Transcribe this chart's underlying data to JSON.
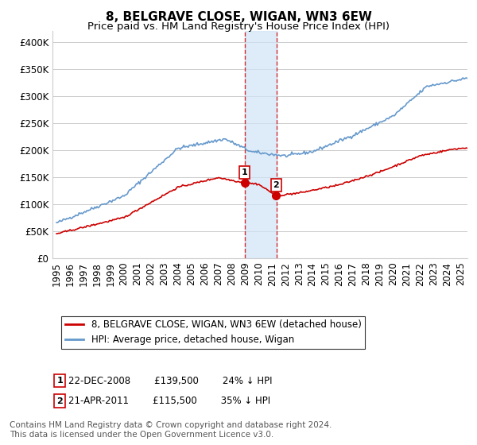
{
  "title": "8, BELGRAVE CLOSE, WIGAN, WN3 6EW",
  "subtitle": "Price paid vs. HM Land Registry's House Price Index (HPI)",
  "ylabel_ticks": [
    "£0",
    "£50K",
    "£100K",
    "£150K",
    "£200K",
    "£250K",
    "£300K",
    "£350K",
    "£400K"
  ],
  "ytick_values": [
    0,
    50000,
    100000,
    150000,
    200000,
    250000,
    300000,
    350000,
    400000
  ],
  "ylim": [
    0,
    420000
  ],
  "xlim_start": 1995.0,
  "xlim_end": 2025.5,
  "purchase1": {
    "date_num": 2008.97,
    "price": 139500,
    "label": "1",
    "date_str": "22-DEC-2008",
    "pct": "24% ↓ HPI"
  },
  "purchase2": {
    "date_num": 2011.31,
    "price": 115500,
    "label": "2",
    "date_str": "21-APR-2011",
    "pct": "35% ↓ HPI"
  },
  "legend_line1": "8, BELGRAVE CLOSE, WIGAN, WN3 6EW (detached house)",
  "legend_line2": "HPI: Average price, detached house, Wigan",
  "footnote": "Contains HM Land Registry data © Crown copyright and database right 2024.\nThis data is licensed under the Open Government Licence v3.0.",
  "hpi_color": "#6699cc",
  "price_color": "#cc0000",
  "bg_color": "#ffffff",
  "grid_color": "#cccccc",
  "highlight_color": "#d0e4f7",
  "title_fontsize": 11,
  "subtitle_fontsize": 9.5,
  "tick_fontsize": 8.5,
  "legend_fontsize": 8.5,
  "footnote_fontsize": 7.5
}
